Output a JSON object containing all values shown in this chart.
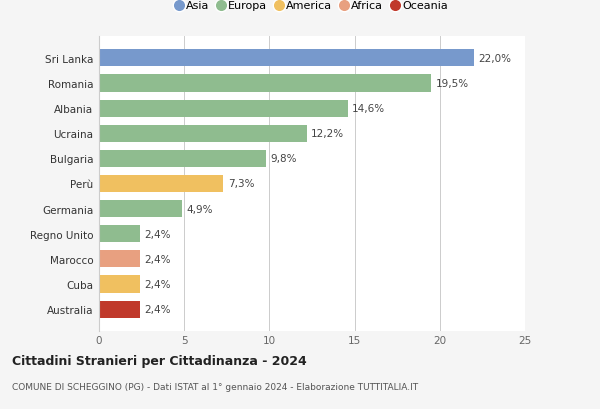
{
  "categories": [
    "Australia",
    "Cuba",
    "Marocco",
    "Regno Unito",
    "Germania",
    "Perù",
    "Bulgaria",
    "Ucraina",
    "Albania",
    "Romania",
    "Sri Lanka"
  ],
  "values": [
    2.4,
    2.4,
    2.4,
    2.4,
    4.9,
    7.3,
    9.8,
    12.2,
    14.6,
    19.5,
    22.0
  ],
  "labels": [
    "2,4%",
    "2,4%",
    "2,4%",
    "2,4%",
    "4,9%",
    "7,3%",
    "9,8%",
    "12,2%",
    "14,6%",
    "19,5%",
    "22,0%"
  ],
  "colors": [
    "#c0392b",
    "#f0c060",
    "#e8a080",
    "#8fbc8f",
    "#8fbc8f",
    "#f0c060",
    "#8fbc8f",
    "#8fbc8f",
    "#8fbc8f",
    "#8fbc8f",
    "#7799cc"
  ],
  "legend": [
    {
      "label": "Asia",
      "color": "#7799cc"
    },
    {
      "label": "Europa",
      "color": "#8fbc8f"
    },
    {
      "label": "America",
      "color": "#f0c060"
    },
    {
      "label": "Africa",
      "color": "#e8a080"
    },
    {
      "label": "Oceania",
      "color": "#c0392b"
    }
  ],
  "xlim": [
    0,
    25
  ],
  "xticks": [
    0,
    5,
    10,
    15,
    20,
    25
  ],
  "title1": "Cittadini Stranieri per Cittadinanza - 2024",
  "title2": "COMUNE DI SCHEGGINO (PG) - Dati ISTAT al 1° gennaio 2024 - Elaborazione TUTTITALIA.IT",
  "bg_color": "#f5f5f5",
  "bar_bg": "#ffffff"
}
